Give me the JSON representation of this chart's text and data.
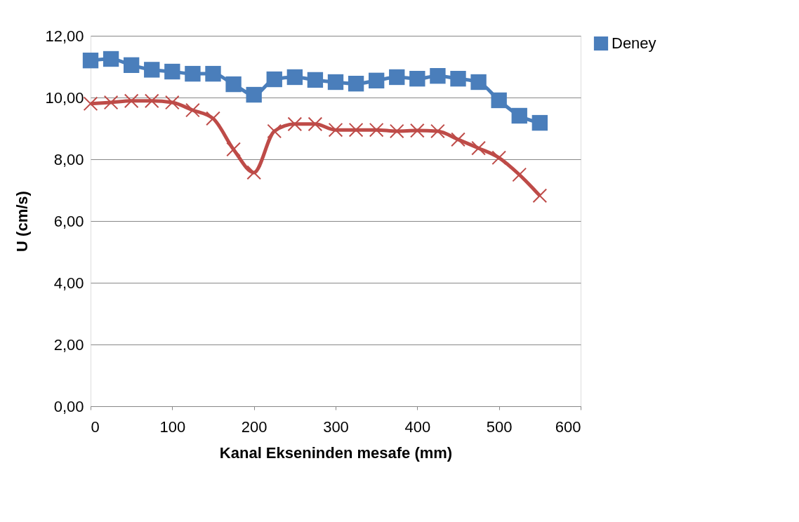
{
  "chart_data": {
    "type": "line",
    "xlabel": "Kanal Ekseninden mesafe (mm)",
    "ylabel": "U (cm/s)",
    "x": [
      0,
      25,
      50,
      75,
      100,
      125,
      150,
      175,
      200,
      225,
      250,
      275,
      300,
      325,
      350,
      375,
      400,
      425,
      450,
      475,
      500,
      525,
      550
    ],
    "series": [
      {
        "name": "Deney",
        "color": "#4a7ebb",
        "marker": "square",
        "line_style": "solid",
        "values": [
          11.2,
          11.25,
          11.05,
          10.9,
          10.84,
          10.77,
          10.77,
          10.43,
          10.09,
          10.59,
          10.66,
          10.57,
          10.5,
          10.45,
          10.55,
          10.66,
          10.61,
          10.7,
          10.61,
          10.5,
          9.91,
          9.41,
          9.18
        ]
      },
      {
        "color": "#be4b48",
        "marker": "cross",
        "line_style": "solid",
        "values": [
          9.8,
          9.84,
          9.89,
          9.89,
          9.84,
          9.59,
          9.32,
          8.32,
          7.57,
          8.91,
          9.14,
          9.14,
          8.95,
          8.95,
          8.95,
          8.91,
          8.93,
          8.91,
          8.64,
          8.36,
          8.05,
          7.5,
          6.82
        ]
      }
    ],
    "xlim": [
      0,
      600
    ],
    "xticks": [
      0,
      100,
      200,
      300,
      400,
      500,
      600
    ],
    "ylim": [
      0,
      12
    ],
    "yticks": [
      {
        "value": 0,
        "label": "0,00"
      },
      {
        "value": 2,
        "label": "2,00"
      },
      {
        "value": 4,
        "label": "4,00"
      },
      {
        "value": 6,
        "label": "6,00"
      },
      {
        "value": 8,
        "label": "8,00"
      },
      {
        "value": 10,
        "label": "10,00"
      },
      {
        "value": 12,
        "label": "12,00"
      }
    ],
    "grid": "y",
    "legend": "right"
  }
}
